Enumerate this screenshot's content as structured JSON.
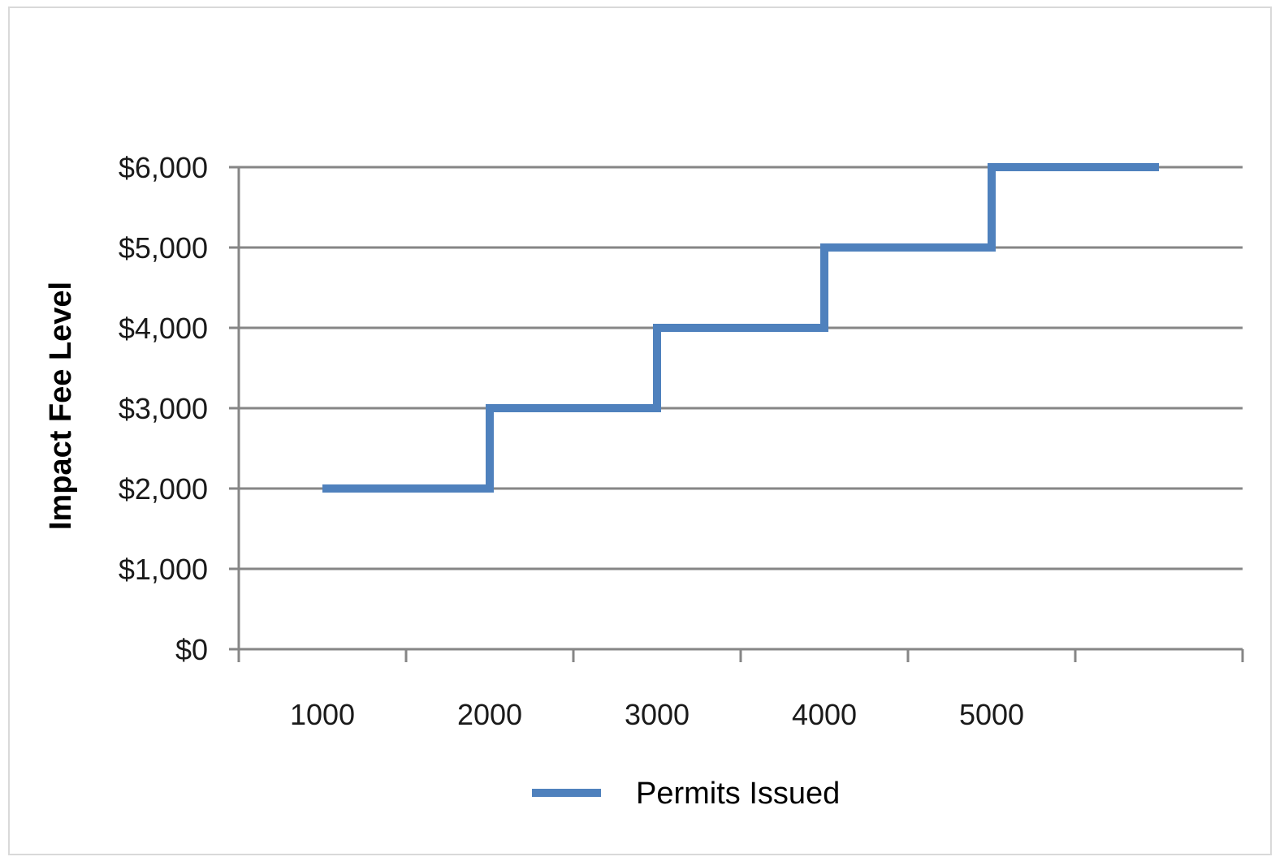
{
  "chart_data": {
    "type": "line",
    "step": true,
    "title": "",
    "xlabel": "",
    "ylabel": "Impact Fee Level",
    "categories": [
      "1000",
      "2000",
      "3000",
      "4000",
      "5000",
      ""
    ],
    "y_tick_labels": [
      "$0",
      "$1,000",
      "$2,000",
      "$3,000",
      "$4,000",
      "$5,000",
      "$6,000"
    ],
    "ylim": [
      0,
      6000
    ],
    "y_ticks": [
      0,
      1000,
      2000,
      3000,
      4000,
      5000,
      6000
    ],
    "grid": true,
    "legend_position": "bottom",
    "series": [
      {
        "name": "Permits Issued",
        "color": "#4f81bd",
        "values": [
          2000,
          3000,
          4000,
          5000,
          6000,
          6000
        ]
      }
    ]
  }
}
